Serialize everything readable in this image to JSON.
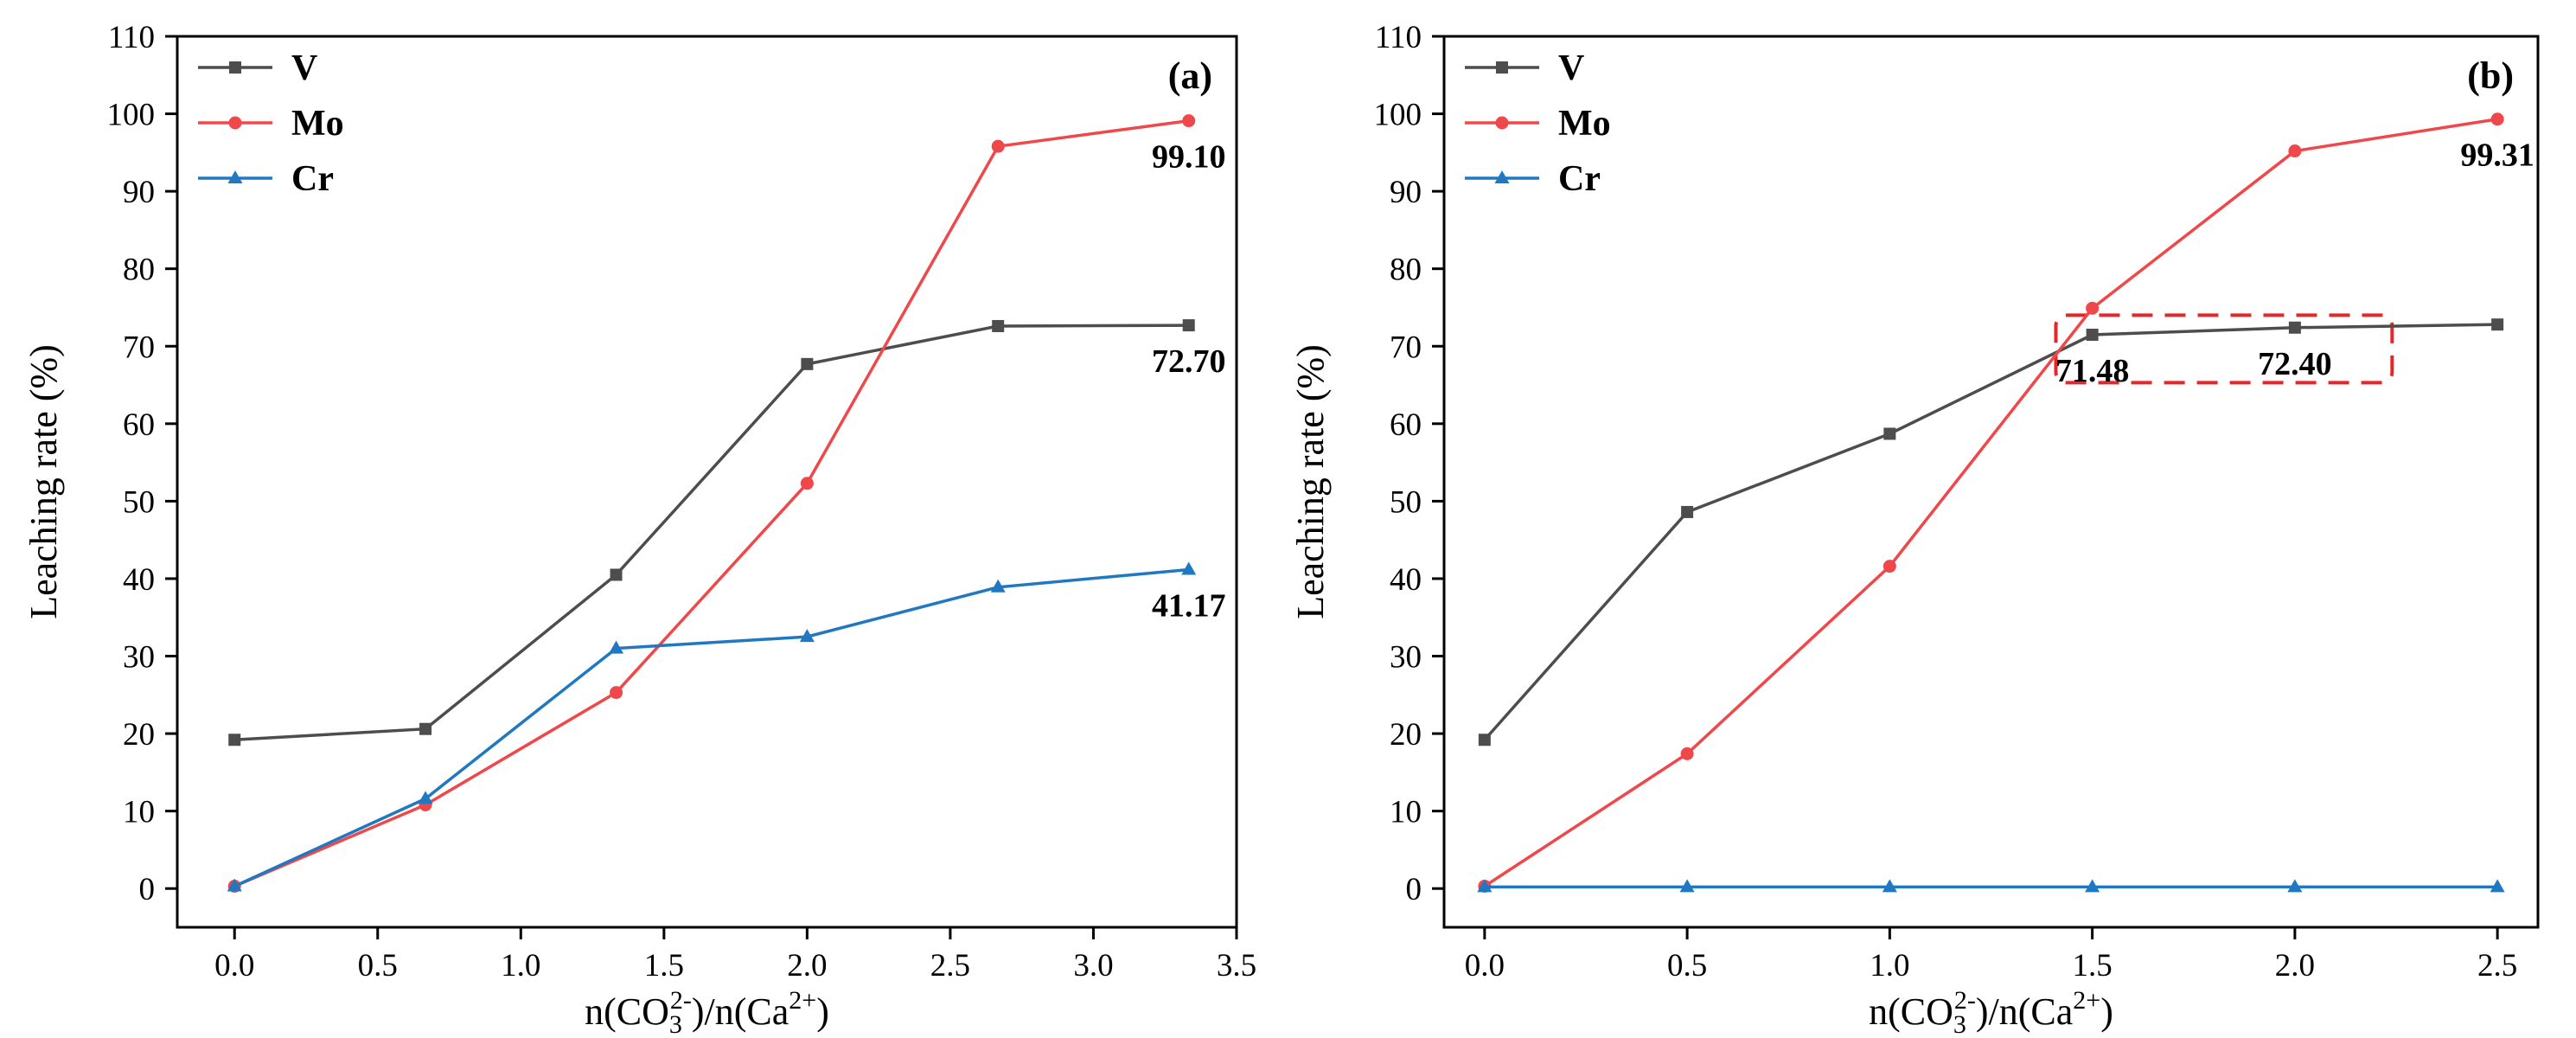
{
  "chart_data": [
    {
      "type": "line",
      "panel_label": "(a)",
      "xlabel_main": "n(CO",
      "xlabel_sub1": "3",
      "xlabel_sup1": "2-",
      "xlabel_mid": ")/n(Ca",
      "xlabel_sup2": "2+",
      "xlabel_end": ")",
      "ylabel": "Leaching rate (%)",
      "xlim": [
        -0.2,
        3.5
      ],
      "ylim": [
        -5,
        110
      ],
      "xticks": [
        0.0,
        0.5,
        1.0,
        1.5,
        2.0,
        2.5,
        3.0,
        3.5
      ],
      "xtick_labels": [
        "0.0",
        "0.5",
        "1.0",
        "1.5",
        "2.0",
        "2.5",
        "3.0",
        "3.5"
      ],
      "yticks": [
        0,
        10,
        20,
        30,
        40,
        50,
        60,
        70,
        80,
        90,
        100,
        110
      ],
      "ytick_labels": [
        "0",
        "10",
        "20",
        "30",
        "40",
        "50",
        "60",
        "70",
        "80",
        "90",
        "100",
        "110"
      ],
      "legend_position": "top-left",
      "series": [
        {
          "name": "V",
          "color": "#4d4d4d",
          "marker": "square",
          "x": [
            0,
            0.667,
            1.333,
            2.0,
            2.667,
            3.333
          ],
          "values": [
            19.2,
            20.6,
            40.5,
            67.7,
            72.6,
            72.7
          ]
        },
        {
          "name": "Mo",
          "color": "#f0474a",
          "marker": "circle",
          "x": [
            0,
            0.667,
            1.333,
            2.0,
            2.667,
            3.333
          ],
          "values": [
            0.3,
            10.8,
            25.3,
            52.3,
            95.8,
            99.1
          ]
        },
        {
          "name": "Cr",
          "color": "#1f78c1",
          "marker": "triangle",
          "x": [
            0,
            0.667,
            1.333,
            2.0,
            2.667,
            3.333
          ],
          "values": [
            0.3,
            11.6,
            31.0,
            32.5,
            38.9,
            41.17
          ]
        }
      ],
      "annotations": [
        {
          "text": "99.10",
          "x": 3.333,
          "y": 99.1,
          "pos": "below"
        },
        {
          "text": "72.70",
          "x": 3.333,
          "y": 72.7,
          "pos": "below"
        },
        {
          "text": "41.17",
          "x": 3.333,
          "y": 41.17,
          "pos": "below"
        }
      ]
    },
    {
      "type": "line",
      "panel_label": "(b)",
      "xlabel_main": "n(CO",
      "xlabel_sub1": "3",
      "xlabel_sup1": "2-",
      "xlabel_mid": ")/n(Ca",
      "xlabel_sup2": "2+",
      "xlabel_end": ")",
      "ylabel": "Leaching rate (%)",
      "xlim": [
        -0.1,
        2.6
      ],
      "ylim": [
        -5,
        110
      ],
      "xticks": [
        0.0,
        0.5,
        1.0,
        1.5,
        2.0,
        2.5
      ],
      "xtick_labels": [
        "0.0",
        "0.5",
        "1.0",
        "1.5",
        "2.0",
        "2.5"
      ],
      "yticks": [
        0,
        10,
        20,
        30,
        40,
        50,
        60,
        70,
        80,
        90,
        100,
        110
      ],
      "ytick_labels": [
        "0",
        "10",
        "20",
        "30",
        "40",
        "50",
        "60",
        "70",
        "80",
        "90",
        "100",
        "110"
      ],
      "legend_position": "top-left",
      "series": [
        {
          "name": "V",
          "color": "#4d4d4d",
          "marker": "square",
          "x": [
            0,
            0.5,
            1.0,
            1.5,
            2.0,
            2.5
          ],
          "values": [
            19.2,
            48.6,
            58.7,
            71.48,
            72.4,
            72.8
          ]
        },
        {
          "name": "Mo",
          "color": "#f0474a",
          "marker": "circle",
          "x": [
            0,
            0.5,
            1.0,
            1.5,
            2.0,
            2.5
          ],
          "values": [
            0.3,
            17.4,
            41.6,
            74.9,
            95.2,
            99.31
          ]
        },
        {
          "name": "Cr",
          "color": "#1f78c1",
          "marker": "triangle",
          "x": [
            0,
            0.5,
            1.0,
            1.5,
            2.0,
            2.5
          ],
          "values": [
            0.2,
            0.2,
            0.2,
            0.2,
            0.2,
            0.2
          ]
        }
      ],
      "annotations": [
        {
          "text": "99.31",
          "x": 2.5,
          "y": 99.31,
          "pos": "below"
        },
        {
          "text": "71.48",
          "x": 1.5,
          "y": 71.48,
          "pos": "below"
        },
        {
          "text": "72.40",
          "x": 2.0,
          "y": 72.4,
          "pos": "below"
        }
      ],
      "highlight_box": {
        "x0": 1.41,
        "x1": 2.24,
        "y0": 65.3,
        "y1": 74.0,
        "color": "#e8262a"
      }
    }
  ]
}
